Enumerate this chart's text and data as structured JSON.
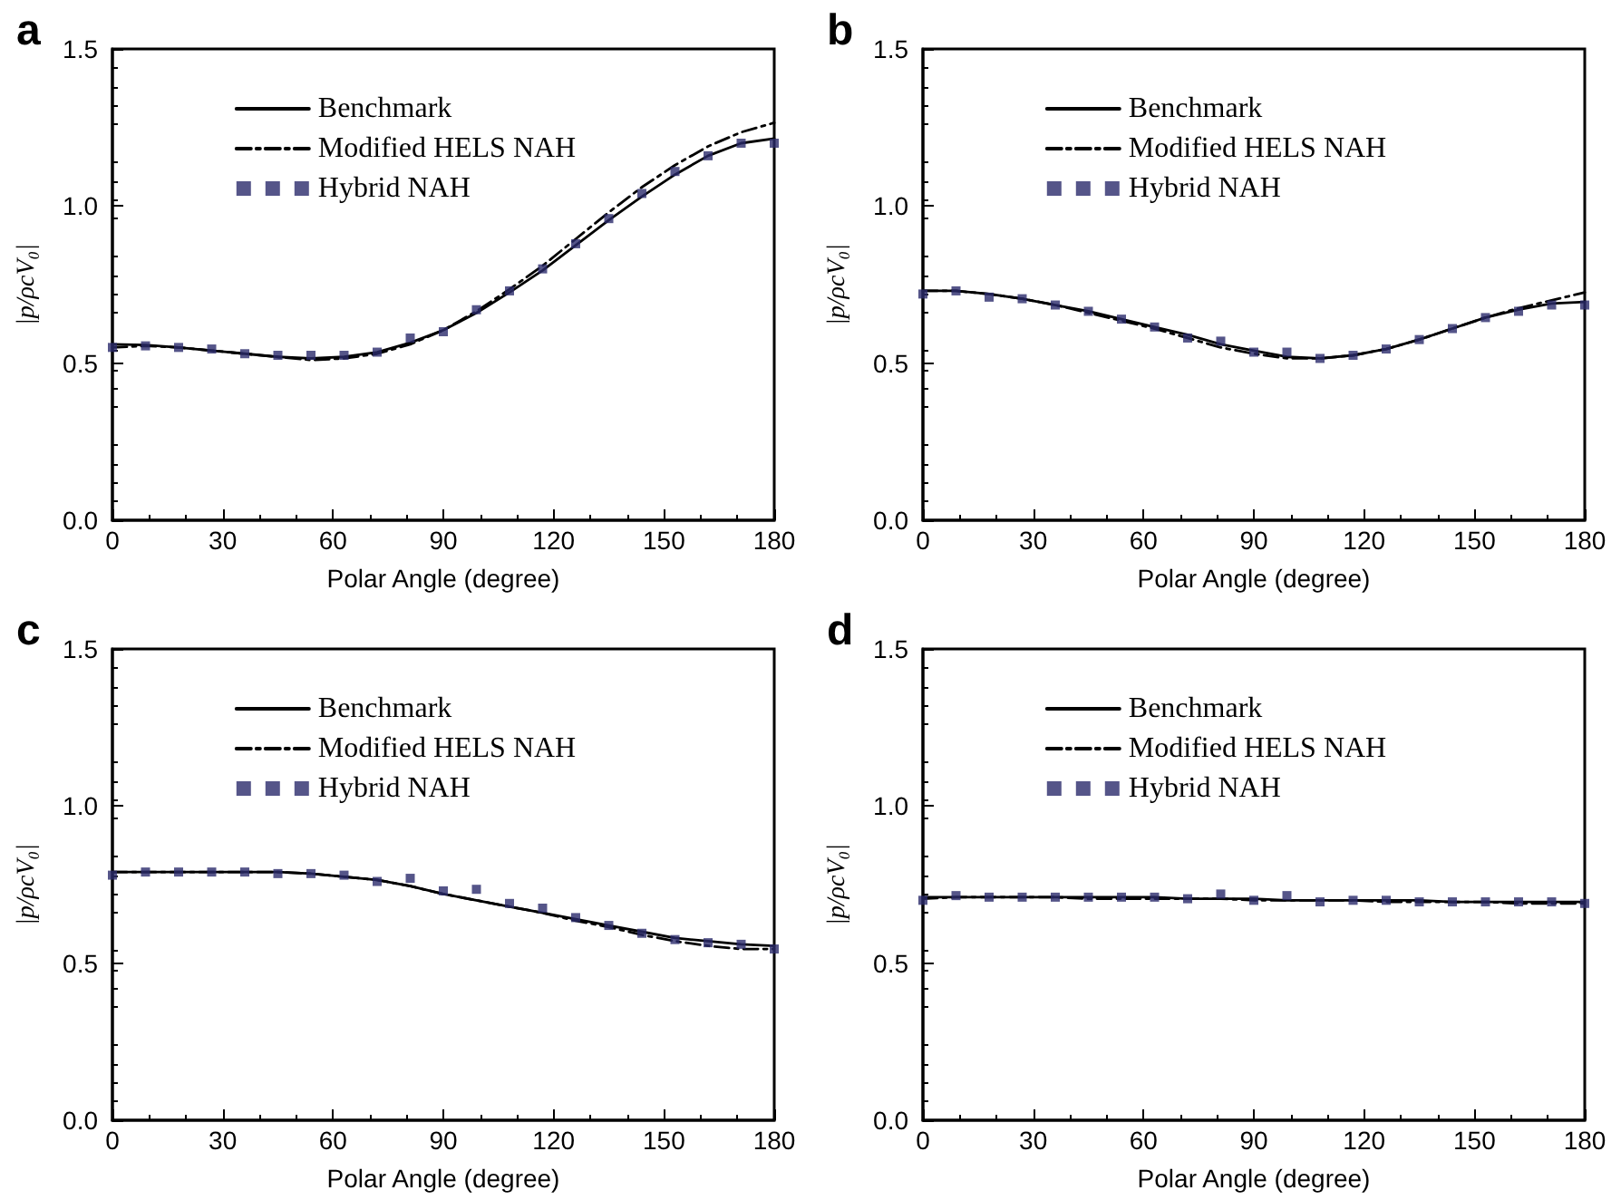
{
  "chart_data": [
    {
      "type": "line",
      "title": "a",
      "xlabel": "Polar Angle (degree)",
      "ylabel": "|p/ρcV₀|",
      "x": [
        0,
        9,
        18,
        27,
        36,
        45,
        54,
        63,
        72,
        81,
        90,
        99,
        108,
        117,
        126,
        135,
        144,
        153,
        162,
        171,
        180
      ],
      "xlim": [
        0,
        180
      ],
      "xticks": [
        0,
        30,
        60,
        90,
        120,
        150,
        180
      ],
      "ylim": [
        0,
        1.5
      ],
      "yticks": [
        {
          "value": 0,
          "label": "0.0"
        },
        {
          "value": 0.5,
          "label": "0.5"
        },
        {
          "value": 1,
          "label": "1.0"
        },
        {
          "value": 1.5,
          "label": "1.5"
        }
      ],
      "grid": false,
      "legend": "top",
      "series": [
        {
          "name": "Benchmark",
          "color": "#000000",
          "line_style": "solid",
          "marker": "none",
          "values": [
            0.56,
            0.558,
            0.55,
            0.54,
            0.53,
            0.52,
            0.515,
            0.52,
            0.535,
            0.565,
            0.605,
            0.66,
            0.725,
            0.795,
            0.875,
            0.955,
            1.03,
            1.1,
            1.16,
            1.2,
            1.215
          ]
        },
        {
          "name": "Modified HELS NAH",
          "color": "#000000",
          "line_style": "dashed",
          "marker": "none",
          "values": [
            0.55,
            0.555,
            0.55,
            0.54,
            0.53,
            0.52,
            0.51,
            0.515,
            0.53,
            0.56,
            0.605,
            0.665,
            0.735,
            0.81,
            0.895,
            0.98,
            1.06,
            1.13,
            1.19,
            1.235,
            1.265
          ]
        },
        {
          "name": "Hybrid NAH",
          "type": "scatter",
          "color": "#2b2b6b",
          "marker": "square",
          "values": [
            0.55,
            0.555,
            0.55,
            0.545,
            0.53,
            0.525,
            0.525,
            0.525,
            0.535,
            0.58,
            0.6,
            0.67,
            0.73,
            0.8,
            0.88,
            0.96,
            1.04,
            1.11,
            1.16,
            1.2,
            1.2
          ]
        }
      ]
    },
    {
      "type": "line",
      "title": "b",
      "xlabel": "Polar Angle (degree)",
      "ylabel": "|p/ρcV₀|",
      "x": [
        0,
        9,
        18,
        27,
        36,
        45,
        54,
        63,
        72,
        81,
        90,
        99,
        108,
        117,
        126,
        135,
        144,
        153,
        162,
        171,
        180
      ],
      "xlim": [
        0,
        180
      ],
      "xticks": [
        0,
        30,
        60,
        90,
        120,
        150,
        180
      ],
      "ylim": [
        0,
        1.5
      ],
      "yticks": [
        {
          "value": 0,
          "label": "0.0"
        },
        {
          "value": 0.5,
          "label": "0.5"
        },
        {
          "value": 1,
          "label": "1.0"
        },
        {
          "value": 1.5,
          "label": "1.5"
        }
      ],
      "grid": false,
      "legend": "top",
      "series": [
        {
          "name": "Benchmark",
          "color": "#000000",
          "line_style": "solid",
          "marker": "none",
          "values": [
            0.73,
            0.73,
            0.72,
            0.705,
            0.685,
            0.665,
            0.64,
            0.615,
            0.59,
            0.56,
            0.54,
            0.52,
            0.515,
            0.525,
            0.545,
            0.575,
            0.61,
            0.645,
            0.67,
            0.69,
            0.695
          ]
        },
        {
          "name": "Modified HELS NAH",
          "color": "#000000",
          "line_style": "dashed",
          "marker": "none",
          "values": [
            0.73,
            0.73,
            0.72,
            0.705,
            0.685,
            0.66,
            0.635,
            0.61,
            0.58,
            0.55,
            0.53,
            0.515,
            0.515,
            0.525,
            0.545,
            0.575,
            0.61,
            0.645,
            0.675,
            0.7,
            0.725
          ]
        },
        {
          "name": "Hybrid NAH",
          "type": "scatter",
          "color": "#2b2b6b",
          "marker": "square",
          "values": [
            0.72,
            0.73,
            0.71,
            0.705,
            0.685,
            0.665,
            0.64,
            0.615,
            0.58,
            0.57,
            0.535,
            0.535,
            0.515,
            0.525,
            0.545,
            0.575,
            0.61,
            0.645,
            0.665,
            0.685,
            0.685
          ]
        }
      ]
    },
    {
      "type": "line",
      "title": "c",
      "xlabel": "Polar Angle (degree)",
      "ylabel": "|p/ρcV₀|",
      "x": [
        0,
        9,
        18,
        27,
        36,
        45,
        54,
        63,
        72,
        81,
        90,
        99,
        108,
        117,
        126,
        135,
        144,
        153,
        162,
        171,
        180
      ],
      "xlim": [
        0,
        180
      ],
      "xticks": [
        0,
        30,
        60,
        90,
        120,
        150,
        180
      ],
      "ylim": [
        0,
        1.5
      ],
      "yticks": [
        {
          "value": 0,
          "label": "0.0"
        },
        {
          "value": 0.5,
          "label": "0.5"
        },
        {
          "value": 1,
          "label": "1.0"
        },
        {
          "value": 1.5,
          "label": "1.5"
        }
      ],
      "grid": false,
      "legend": "top",
      "series": [
        {
          "name": "Benchmark",
          "color": "#000000",
          "line_style": "solid",
          "marker": "none",
          "values": [
            0.79,
            0.79,
            0.79,
            0.79,
            0.79,
            0.79,
            0.785,
            0.775,
            0.765,
            0.745,
            0.72,
            0.7,
            0.68,
            0.66,
            0.64,
            0.62,
            0.6,
            0.58,
            0.57,
            0.56,
            0.555
          ]
        },
        {
          "name": "Modified HELS NAH",
          "color": "#000000",
          "line_style": "dashed",
          "marker": "none",
          "values": [
            0.79,
            0.79,
            0.79,
            0.79,
            0.79,
            0.79,
            0.785,
            0.775,
            0.765,
            0.745,
            0.72,
            0.7,
            0.68,
            0.66,
            0.635,
            0.615,
            0.59,
            0.57,
            0.555,
            0.545,
            0.545
          ]
        },
        {
          "name": "Hybrid NAH",
          "type": "scatter",
          "color": "#2b2b6b",
          "marker": "square",
          "values": [
            0.78,
            0.79,
            0.79,
            0.79,
            0.79,
            0.785,
            0.785,
            0.78,
            0.76,
            0.77,
            0.73,
            0.735,
            0.69,
            0.675,
            0.645,
            0.62,
            0.595,
            0.575,
            0.565,
            0.56,
            0.545
          ]
        }
      ]
    },
    {
      "type": "line",
      "title": "d",
      "xlabel": "Polar Angle (degree)",
      "ylabel": "|p/ρcV₀|",
      "x": [
        0,
        9,
        18,
        27,
        36,
        45,
        54,
        63,
        72,
        81,
        90,
        99,
        108,
        117,
        126,
        135,
        144,
        153,
        162,
        171,
        180
      ],
      "xlim": [
        0,
        180
      ],
      "xticks": [
        0,
        30,
        60,
        90,
        120,
        150,
        180
      ],
      "ylim": [
        0,
        1.5
      ],
      "yticks": [
        {
          "value": 0,
          "label": "0.0"
        },
        {
          "value": 0.5,
          "label": "0.5"
        },
        {
          "value": 1,
          "label": "1.0"
        },
        {
          "value": 1.5,
          "label": "1.5"
        }
      ],
      "grid": false,
      "legend": "top",
      "series": [
        {
          "name": "Benchmark",
          "color": "#000000",
          "line_style": "solid",
          "marker": "none",
          "values": [
            0.71,
            0.71,
            0.71,
            0.71,
            0.71,
            0.71,
            0.71,
            0.71,
            0.705,
            0.705,
            0.705,
            0.7,
            0.7,
            0.7,
            0.7,
            0.7,
            0.695,
            0.695,
            0.695,
            0.695,
            0.695
          ]
        },
        {
          "name": "Modified HELS NAH",
          "color": "#000000",
          "line_style": "dashed",
          "marker": "none",
          "values": [
            0.705,
            0.71,
            0.71,
            0.71,
            0.71,
            0.705,
            0.705,
            0.705,
            0.705,
            0.705,
            0.7,
            0.7,
            0.7,
            0.7,
            0.695,
            0.695,
            0.695,
            0.695,
            0.69,
            0.69,
            0.69
          ]
        },
        {
          "name": "Hybrid NAH",
          "type": "scatter",
          "color": "#2b2b6b",
          "marker": "square",
          "values": [
            0.7,
            0.715,
            0.71,
            0.71,
            0.71,
            0.71,
            0.71,
            0.71,
            0.705,
            0.72,
            0.7,
            0.715,
            0.695,
            0.7,
            0.7,
            0.695,
            0.695,
            0.695,
            0.695,
            0.695,
            0.69
          ]
        }
      ]
    }
  ]
}
